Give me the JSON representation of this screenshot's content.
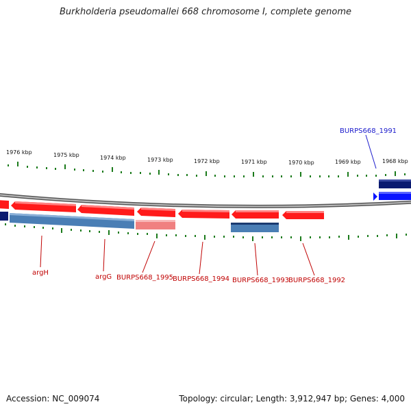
{
  "title": "Burkholderia pseudomallei 668 chromosome I, complete genome",
  "footer": {
    "accession": "Accession: NC_009074",
    "summary": "Topology: circular; Length: 3,912,947 bp; Genes: 4,000"
  },
  "scale_labels": [
    "1976 kbp",
    "1975 kbp",
    "1974 kbp",
    "1973 kbp",
    "1972 kbp",
    "1971 kbp",
    "1970 kbp",
    "1969 kbp",
    "1968 kbp"
  ],
  "gene_labels": [
    "argH",
    "argG",
    "BURPS668_1995",
    "BURPS668_1994",
    "BURPS668_1993",
    "BURPS668_1992",
    "BURPS668_1991"
  ],
  "colors": {
    "forward_gene": "#ff1a1a",
    "forward_gene_light": "#f08080",
    "reverse_cds": "#4a7eb5",
    "reverse_cds_dark": "#0a1a70",
    "forward_cds_blue": "#0a14ff",
    "backbone": "#808080",
    "ticks": "#1a7a1a",
    "label_red": "#c00000",
    "label_blue": "#1a1acc"
  }
}
